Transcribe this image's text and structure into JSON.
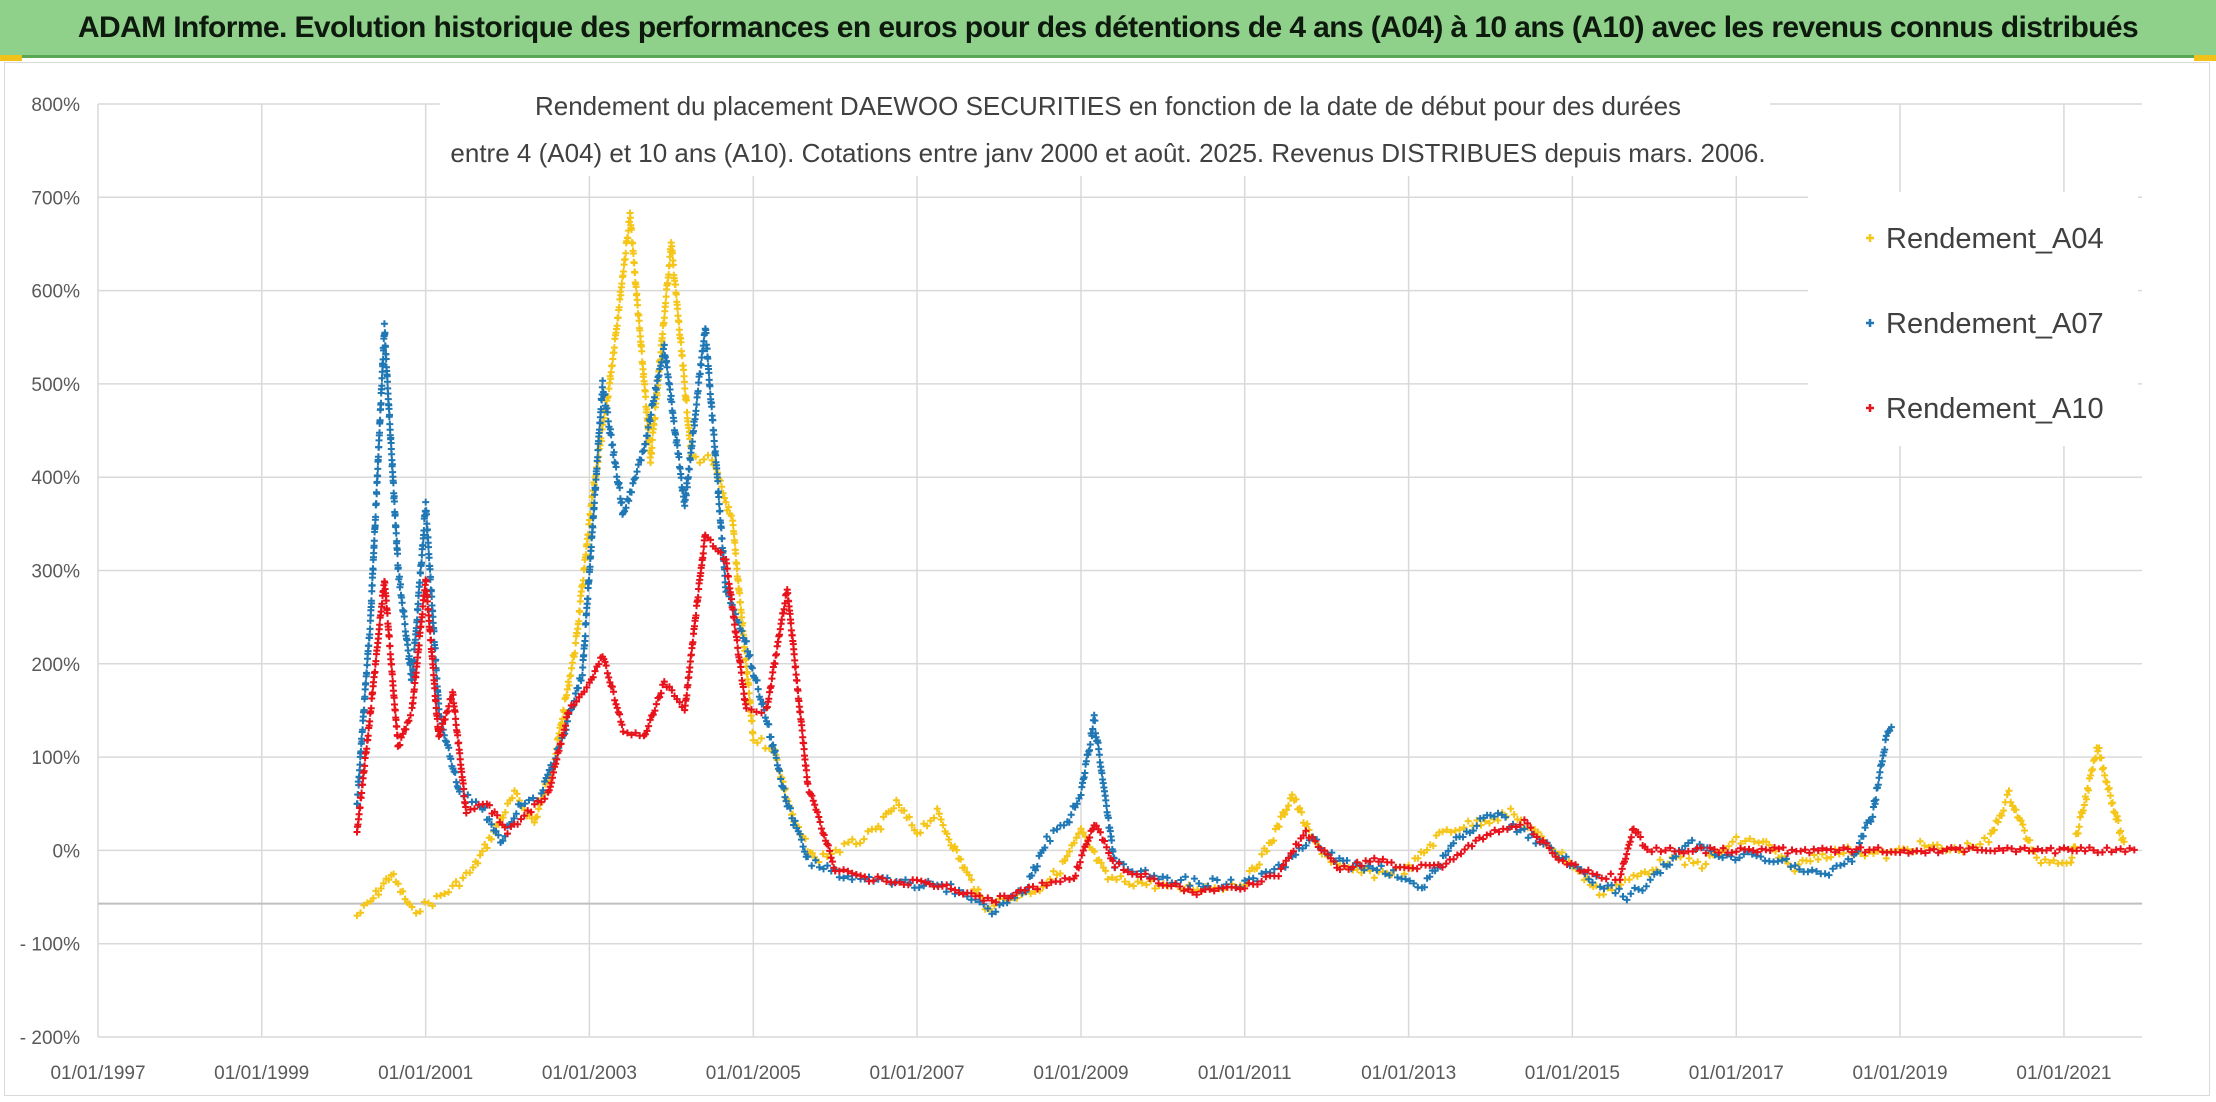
{
  "header": {
    "title": "ADAM Informe. Evolution historique des performances en euros pour des détentions de 4 ans (A04) à 10 ans (A10) avec les revenus connus distribués"
  },
  "colors": {
    "banner": "#8fd08a",
    "A04": "#f5c518",
    "A07": "#1f77b4",
    "A10": "#e8121b",
    "grid": "#d9d9d9"
  },
  "chart_data": {
    "type": "scatter",
    "title_lines": [
      "Rendement du placement DAEWOO SECURITIES en fonction de la date de début pour des durées",
      "entre 4 (A04) et 10 ans (A10). Cotations entre janv 2000 et août. 2025. Revenus DISTRIBUES depuis mars. 2006."
    ],
    "xlabel": "",
    "ylabel": "",
    "x_range": [
      "1997-01-01",
      "2021-12-15"
    ],
    "ylim": [
      -200,
      800
    ],
    "y_ticks": [
      "800%",
      "700%",
      "600%",
      "500%",
      "400%",
      "300%",
      "200%",
      "100%",
      "0%",
      "- 100%",
      "- 200%"
    ],
    "x_ticks": [
      "01/01/1997",
      "01/01/1999",
      "01/01/2001",
      "01/01/2003",
      "01/01/2005",
      "01/01/2007",
      "01/01/2009",
      "01/01/2011",
      "01/01/2013",
      "01/01/2015",
      "01/01/2017",
      "01/01/2019",
      "01/01/2021"
    ],
    "marker": "+",
    "legend_position": "top-right",
    "series": [
      {
        "name": "Rendement_A04",
        "color": "#f5c518",
        "points": [
          [
            "2000-03-01",
            -70
          ],
          [
            "2000-05-01",
            -55
          ],
          [
            "2000-08-01",
            -25
          ],
          [
            "2000-11-01",
            -65
          ],
          [
            "2001-02-01",
            -55
          ],
          [
            "2001-05-01",
            -40
          ],
          [
            "2001-08-01",
            -20
          ],
          [
            "2001-11-01",
            20
          ],
          [
            "2002-02-01",
            60
          ],
          [
            "2002-05-01",
            30
          ],
          [
            "2002-08-01",
            100
          ],
          [
            "2002-11-01",
            220
          ],
          [
            "2003-01-15",
            380
          ],
          [
            "2003-04-01",
            500
          ],
          [
            "2003-07-01",
            680
          ],
          [
            "2003-10-01",
            420
          ],
          [
            "2004-01-01",
            650
          ],
          [
            "2004-04-01",
            420
          ],
          [
            "2004-07-01",
            420
          ],
          [
            "2004-10-01",
            350
          ],
          [
            "2005-01-01",
            120
          ],
          [
            "2005-04-01",
            110
          ],
          [
            "2005-07-01",
            30
          ],
          [
            "2005-10-01",
            -10
          ],
          [
            "2006-03-01",
            5
          ],
          [
            "2006-07-01",
            20
          ],
          [
            "2006-10-01",
            50
          ],
          [
            "2007-01-01",
            20
          ],
          [
            "2007-04-01",
            40
          ],
          [
            "2007-08-01",
            -20
          ],
          [
            "2007-11-01",
            -60
          ],
          [
            "2008-03-01",
            -50
          ],
          [
            "2008-07-01",
            -40
          ],
          [
            "2008-10-01",
            -20
          ],
          [
            "2009-01-01",
            20
          ],
          [
            "2009-05-01",
            -30
          ],
          [
            "2009-10-01",
            -35
          ],
          [
            "2010-03-01",
            -40
          ],
          [
            "2010-08-01",
            -40
          ],
          [
            "2011-01-01",
            -35
          ],
          [
            "2011-05-01",
            10
          ],
          [
            "2011-08-01",
            60
          ],
          [
            "2011-11-01",
            10
          ],
          [
            "2012-03-01",
            -20
          ],
          [
            "2012-08-01",
            -25
          ],
          [
            "2013-01-01",
            -20
          ],
          [
            "2013-06-01",
            20
          ],
          [
            "2013-11-01",
            30
          ],
          [
            "2014-04-01",
            40
          ],
          [
            "2014-09-01",
            10
          ],
          [
            "2015-01-01",
            -15
          ],
          [
            "2015-05-01",
            -45
          ],
          [
            "2015-10-01",
            -30
          ],
          [
            "2016-03-01",
            -10
          ],
          [
            "2016-08-01",
            -15
          ],
          [
            "2017-01-01",
            10
          ],
          [
            "2017-05-01",
            10
          ],
          [
            "2017-09-01",
            -20
          ],
          [
            "2018-01-01",
            -5
          ],
          [
            "2018-06-01",
            0
          ],
          [
            "2018-11-01",
            -5
          ],
          [
            "2019-04-01",
            5
          ],
          [
            "2019-09-01",
            0
          ],
          [
            "2020-02-01",
            10
          ],
          [
            "2020-05-01",
            60
          ],
          [
            "2020-09-01",
            -10
          ],
          [
            "2021-02-01",
            -10
          ],
          [
            "2021-06-01",
            110
          ],
          [
            "2021-10-01",
            0
          ]
        ]
      },
      {
        "name": "Rendement_A07",
        "color": "#1f77b4",
        "points": [
          [
            "2000-03-01",
            50
          ],
          [
            "2000-05-01",
            250
          ],
          [
            "2000-07-01",
            560
          ],
          [
            "2000-09-01",
            300
          ],
          [
            "2000-11-01",
            180
          ],
          [
            "2001-01-01",
            370
          ],
          [
            "2001-03-01",
            150
          ],
          [
            "2001-06-01",
            60
          ],
          [
            "2001-09-01",
            50
          ],
          [
            "2001-12-01",
            10
          ],
          [
            "2002-03-01",
            50
          ],
          [
            "2002-06-01",
            60
          ],
          [
            "2002-09-01",
            120
          ],
          [
            "2002-12-01",
            190
          ],
          [
            "2003-03-01",
            500
          ],
          [
            "2003-06-01",
            360
          ],
          [
            "2003-09-01",
            430
          ],
          [
            "2003-12-01",
            540
          ],
          [
            "2004-03-01",
            370
          ],
          [
            "2004-06-01",
            560
          ],
          [
            "2004-09-01",
            280
          ],
          [
            "2004-12-01",
            220
          ],
          [
            "2005-03-01",
            140
          ],
          [
            "2005-06-01",
            50
          ],
          [
            "2005-09-01",
            -10
          ],
          [
            "2006-01-01",
            -25
          ],
          [
            "2006-06-01",
            -30
          ],
          [
            "2006-12-01",
            -35
          ],
          [
            "2007-06-01",
            -40
          ],
          [
            "2007-12-01",
            -65
          ],
          [
            "2008-05-01",
            -40
          ],
          [
            "2008-08-01",
            10
          ],
          [
            "2008-11-01",
            30
          ],
          [
            "2009-01-01",
            60
          ],
          [
            "2009-03-01",
            140
          ],
          [
            "2009-06-01",
            -15
          ],
          [
            "2010-01-01",
            -30
          ],
          [
            "2010-07-01",
            -35
          ],
          [
            "2011-01-01",
            -35
          ],
          [
            "2011-06-01",
            -20
          ],
          [
            "2011-11-01",
            10
          ],
          [
            "2012-04-01",
            -15
          ],
          [
            "2012-09-01",
            -20
          ],
          [
            "2013-03-01",
            -40
          ],
          [
            "2013-08-01",
            10
          ],
          [
            "2014-01-01",
            40
          ],
          [
            "2014-06-01",
            20
          ],
          [
            "2014-11-01",
            -5
          ],
          [
            "2015-04-01",
            -30
          ],
          [
            "2015-09-01",
            -50
          ],
          [
            "2016-01-01",
            -30
          ],
          [
            "2016-06-01",
            10
          ],
          [
            "2016-11-01",
            -10
          ],
          [
            "2017-04-01",
            -5
          ],
          [
            "2017-09-01",
            -15
          ],
          [
            "2018-02-01",
            -25
          ],
          [
            "2018-06-01",
            -10
          ],
          [
            "2018-09-01",
            40
          ],
          [
            "2018-11-01",
            120
          ],
          [
            "2018-12-01",
            140
          ]
        ]
      },
      {
        "name": "Rendement_A10",
        "color": "#e8121b",
        "points": [
          [
            "2000-03-01",
            20
          ],
          [
            "2000-05-01",
            150
          ],
          [
            "2000-07-01",
            290
          ],
          [
            "2000-09-01",
            110
          ],
          [
            "2000-11-01",
            150
          ],
          [
            "2001-01-01",
            290
          ],
          [
            "2001-03-01",
            120
          ],
          [
            "2001-05-01",
            170
          ],
          [
            "2001-07-01",
            40
          ],
          [
            "2001-10-01",
            50
          ],
          [
            "2002-01-01",
            20
          ],
          [
            "2002-04-01",
            40
          ],
          [
            "2002-07-01",
            60
          ],
          [
            "2002-10-01",
            150
          ],
          [
            "2003-01-01",
            180
          ],
          [
            "2003-03-01",
            210
          ],
          [
            "2003-06-01",
            130
          ],
          [
            "2003-09-01",
            120
          ],
          [
            "2003-12-01",
            180
          ],
          [
            "2004-03-01",
            150
          ],
          [
            "2004-06-01",
            340
          ],
          [
            "2004-09-01",
            310
          ],
          [
            "2004-12-01",
            150
          ],
          [
            "2005-03-01",
            150
          ],
          [
            "2005-06-01",
            280
          ],
          [
            "2005-09-01",
            70
          ],
          [
            "2006-01-01",
            -20
          ],
          [
            "2006-06-01",
            -30
          ],
          [
            "2007-01-01",
            -35
          ],
          [
            "2007-06-01",
            -40
          ],
          [
            "2007-12-01",
            -55
          ],
          [
            "2008-06-01",
            -40
          ],
          [
            "2008-12-01",
            -30
          ],
          [
            "2009-03-01",
            30
          ],
          [
            "2009-06-01",
            -15
          ],
          [
            "2010-01-01",
            -35
          ],
          [
            "2010-06-01",
            -45
          ],
          [
            "2011-01-01",
            -40
          ],
          [
            "2011-06-01",
            -25
          ],
          [
            "2011-10-01",
            20
          ],
          [
            "2012-03-01",
            -20
          ],
          [
            "2012-08-01",
            -10
          ],
          [
            "2013-01-01",
            -20
          ],
          [
            "2013-06-01",
            -15
          ],
          [
            "2014-01-01",
            20
          ],
          [
            "2014-06-01",
            30
          ],
          [
            "2014-11-01",
            -10
          ],
          [
            "2015-04-01",
            -25
          ],
          [
            "2015-08-01",
            -30
          ],
          [
            "2015-10-01",
            25
          ],
          [
            "2015-12-01",
            0
          ],
          [
            "2016-06-01",
            0
          ],
          [
            "2017-01-01",
            0
          ],
          [
            "2017-06-01",
            0
          ],
          [
            "2018-01-01",
            0
          ],
          [
            "2018-06-01",
            0
          ],
          [
            "2019-01-01",
            0
          ],
          [
            "2019-06-01",
            0
          ],
          [
            "2020-01-01",
            0
          ],
          [
            "2020-06-01",
            0
          ],
          [
            "2021-01-01",
            0
          ],
          [
            "2021-06-01",
            0
          ],
          [
            "2021-12-01",
            0
          ]
        ]
      }
    ]
  }
}
